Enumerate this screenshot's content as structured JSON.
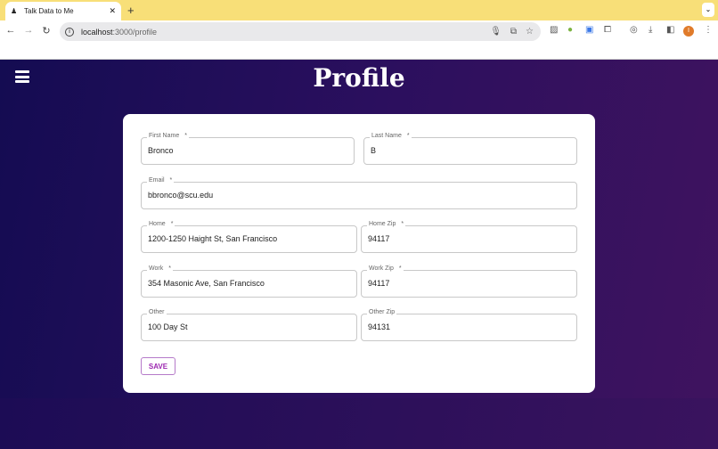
{
  "browser": {
    "tab_title": "Talk Data to Me",
    "url_host": "localhost",
    "url_path": ":3000/profile",
    "avatar_letter": "I"
  },
  "page": {
    "title": "Profile",
    "required_mark": "*",
    "fields": {
      "first_name": {
        "label": "First Name",
        "value": "Bronco"
      },
      "last_name": {
        "label": "Last Name",
        "value": "B"
      },
      "email": {
        "label": "Email",
        "value": "bbronco@scu.edu"
      },
      "home": {
        "label": "Home",
        "value": "1200-1250 Haight St, San Francisco"
      },
      "home_zip": {
        "label": "Home Zip",
        "value": "94117"
      },
      "work": {
        "label": "Work",
        "value": "354 Masonic Ave, San Francisco"
      },
      "work_zip": {
        "label": "Work Zip",
        "value": "94117"
      },
      "other": {
        "label": "Other",
        "value": "100 Day St"
      },
      "other_zip": {
        "label": "Other Zip",
        "value": "94131"
      }
    },
    "save_label": "SAVE"
  },
  "colors": {
    "accent": "#9c27b0",
    "background": "#2b0f5e",
    "tabbar": "#f8df78"
  }
}
